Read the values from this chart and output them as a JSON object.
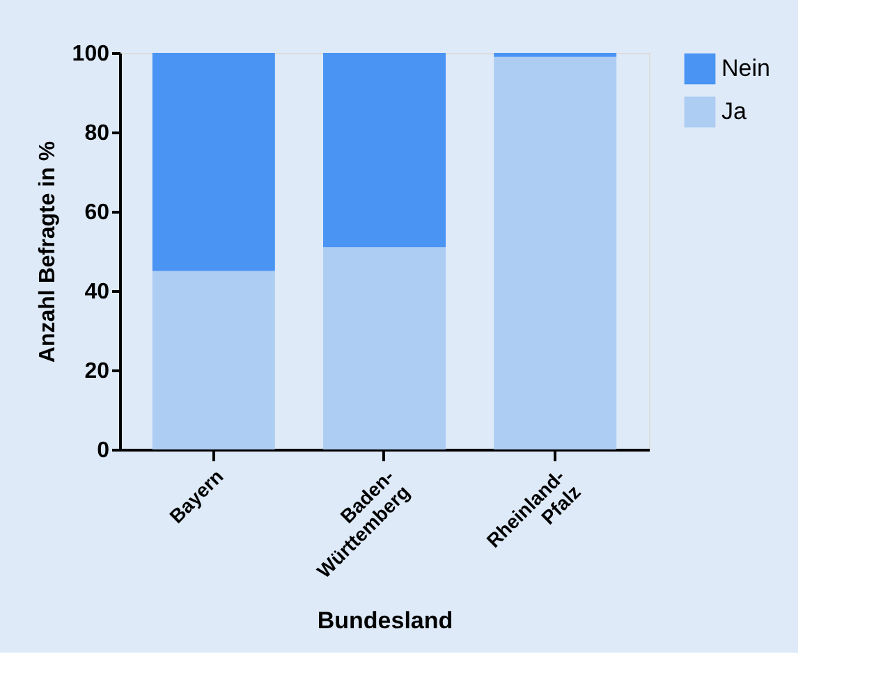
{
  "chart_data": {
    "type": "bar",
    "stacked": true,
    "xlabel": "Bundesland",
    "ylabel": "Anzahl Befragte in %",
    "categories": [
      "Bayern",
      "Baden-\nWürttemberg",
      "Rheinland-\nPfalz"
    ],
    "series": [
      {
        "name": "Ja",
        "color": "#aecdf3",
        "values": [
          45,
          51,
          99
        ]
      },
      {
        "name": "Nein",
        "color": "#4a94f4",
        "values": [
          55,
          49,
          1
        ]
      }
    ],
    "ylim": [
      0,
      100
    ],
    "yticks": [
      0,
      20,
      40,
      60,
      80,
      100
    ],
    "grid": false,
    "legend": "top right"
  }
}
